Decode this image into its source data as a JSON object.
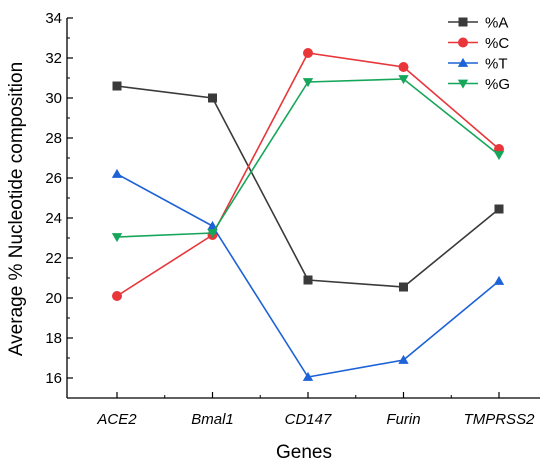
{
  "chart_data": {
    "type": "line",
    "categories": [
      "ACE2",
      "Bmal1",
      "CD147",
      "Furin",
      "TMPRSS2"
    ],
    "series": [
      {
        "name": "%A",
        "values": [
          30.6,
          30.0,
          20.9,
          20.55,
          24.45
        ],
        "color": "#3a3a3a",
        "marker": "square"
      },
      {
        "name": "%C",
        "values": [
          20.1,
          23.15,
          32.25,
          31.55,
          27.45
        ],
        "color": "#e8363a",
        "marker": "circle"
      },
      {
        "name": "%T",
        "values": [
          26.2,
          23.6,
          16.05,
          16.9,
          20.85
        ],
        "color": "#1d62d6",
        "marker": "triangle-up"
      },
      {
        "name": "%G",
        "values": [
          23.05,
          23.25,
          30.8,
          30.95,
          27.15
        ],
        "color": "#16a65a",
        "marker": "triangle-down"
      }
    ],
    "xlabel": "Genes",
    "ylabel": "Average % Nucleotide composition",
    "ylim": [
      15,
      34
    ],
    "yticks": [
      16,
      18,
      20,
      22,
      24,
      26,
      28,
      30,
      32,
      34
    ],
    "grid": false,
    "legend_position": "top-right"
  }
}
